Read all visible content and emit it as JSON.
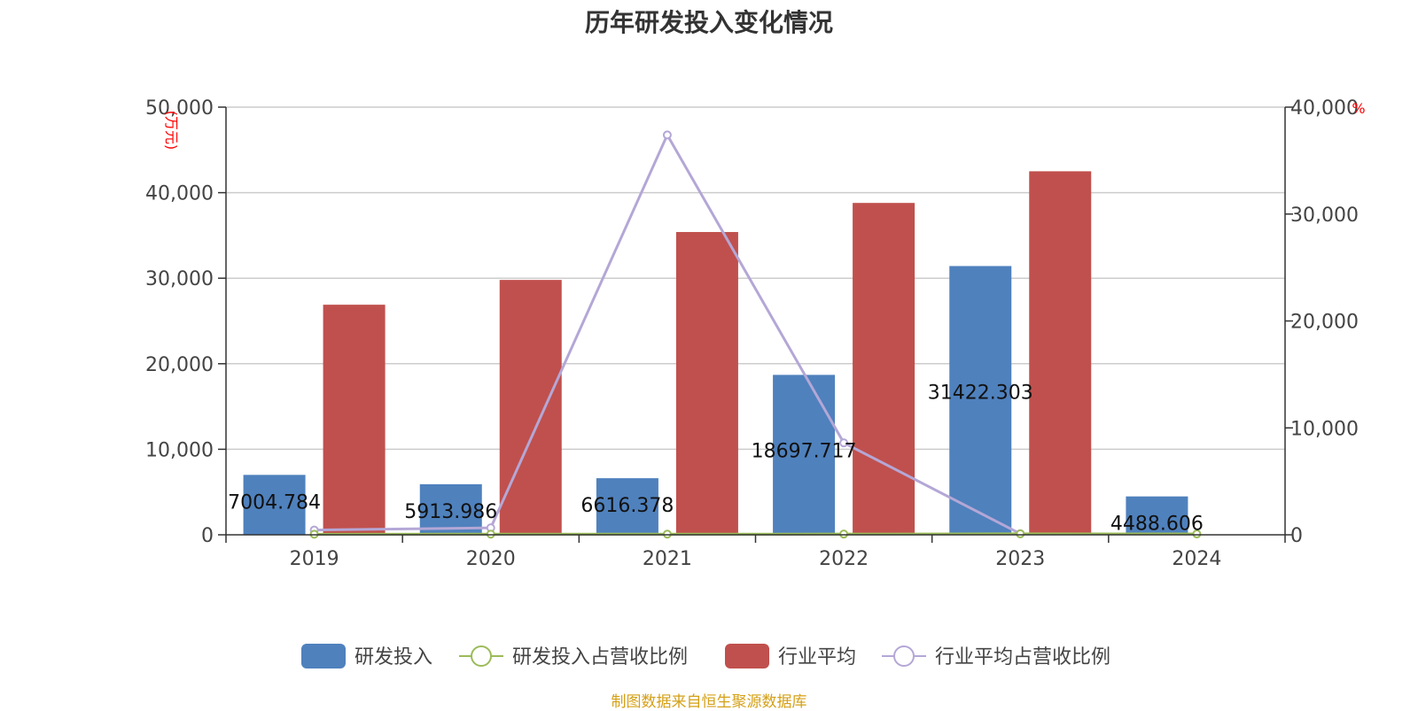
{
  "title": "历年研发投入变化情况",
  "source_note": "制图数据来自恒生聚源数据库",
  "colors": {
    "rd_bar": "#4f81bd",
    "rd_ratio": "#9bbb59",
    "industry_bar": "#c0504d",
    "industry_ratio": "#b4a7d6",
    "unit": "#ff0000",
    "source": "#d4a017"
  },
  "chart_data": {
    "type": "bar",
    "title": "历年研发投入变化情况",
    "categories": [
      "2019",
      "2020",
      "2021",
      "2022",
      "2023",
      "2024"
    ],
    "y_left": {
      "unit": "(万元)",
      "range": [
        0,
        50000
      ],
      "ticks": [
        "0",
        "10,000",
        "20,000",
        "30,000",
        "40,000",
        "50,000"
      ]
    },
    "y_right": {
      "unit": "%",
      "range": [
        0,
        40000
      ],
      "ticks": [
        "0",
        "10,000",
        "20,000",
        "30,000",
        "40,000"
      ]
    },
    "grid": true,
    "legend_position": "bottom",
    "series": [
      {
        "name": "研发投入",
        "type": "bar",
        "axis": "left",
        "values": [
          7004.784,
          5913.986,
          6616.378,
          18697.717,
          31422.303,
          4488.606
        ],
        "labels": [
          "7004.784",
          "5913.986",
          "6616.378",
          "18697.717",
          "31422.303",
          "4488.606"
        ]
      },
      {
        "name": "研发投入占营收比例",
        "type": "line",
        "axis": "right",
        "values": [
          50,
          60,
          60,
          70,
          90,
          80
        ]
      },
      {
        "name": "行业平均",
        "type": "bar",
        "axis": "left",
        "values": [
          26900,
          29800,
          35400,
          38800,
          42500,
          null
        ]
      },
      {
        "name": "行业平均占营收比例",
        "type": "line",
        "axis": "right",
        "values": [
          450,
          650,
          37400,
          8600,
          100,
          null
        ]
      }
    ]
  }
}
